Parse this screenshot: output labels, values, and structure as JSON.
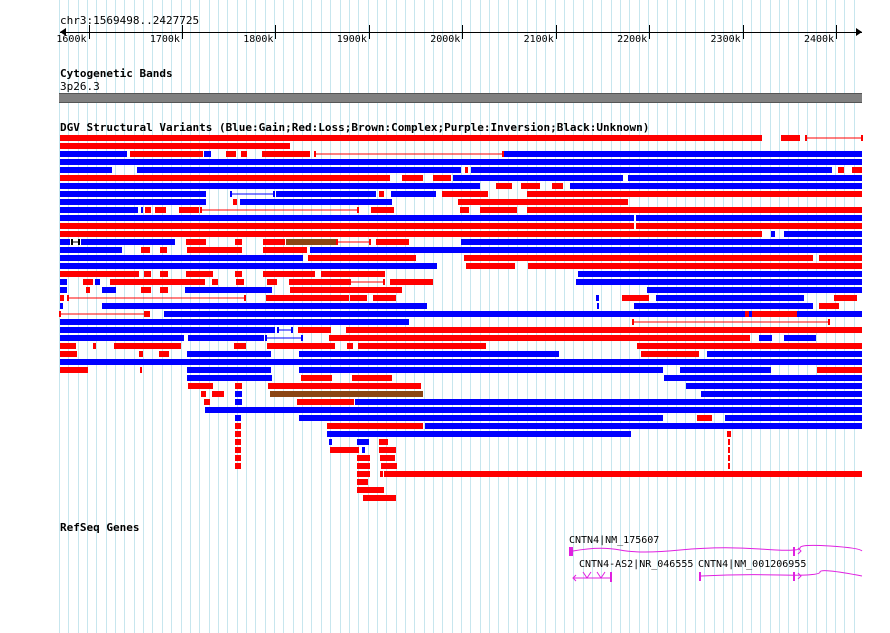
{
  "position": {
    "text": "chr3:1569498..2427725"
  },
  "ruler": {
    "ticks": [
      {
        "label": "1600k",
        "pos": 1600000
      },
      {
        "label": "1700k",
        "pos": 1700000
      },
      {
        "label": "1800k",
        "pos": 1800000
      },
      {
        "label": "1900k",
        "pos": 1900000
      },
      {
        "label": "2000k",
        "pos": 2000000
      },
      {
        "label": "2100k",
        "pos": 2100000
      },
      {
        "label": "2200k",
        "pos": 2200000
      },
      {
        "label": "2300k",
        "pos": 2300000
      },
      {
        "label": "2400k",
        "pos": 2400000
      }
    ]
  },
  "cytobands": {
    "title": "Cytogenetic Bands",
    "band": "3p26.3",
    "color": "#808080"
  },
  "dgv": {
    "title": "DGV Structural Variants (Blue:Gain;Red:Loss;Brown:Complex;Purple:Inversion;Black:Unknown)",
    "colors": {
      "gain": "#0000ff",
      "loss": "#ff0000",
      "complex": "#8b4513",
      "line_gain": "#0000ff"
    }
  },
  "genes": {
    "title": "RefSeq Genes",
    "color": "#e020e0",
    "items": [
      {
        "label": "CNTN4|NM_175607"
      },
      {
        "label": "CNTN4-AS2|NR_046555"
      },
      {
        "label": "CNTN4|NM_001206955"
      }
    ]
  }
}
